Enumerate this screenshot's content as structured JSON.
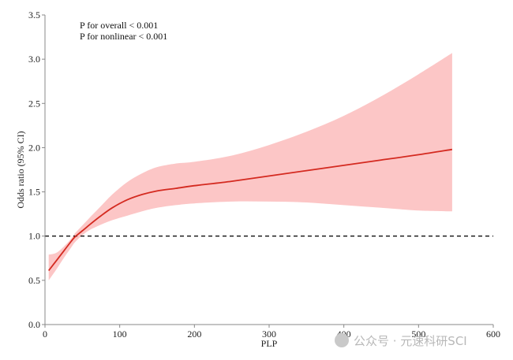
{
  "chart_data": {
    "type": "line",
    "xlabel": "PLP",
    "ylabel": "Odds ratio (95% CI)",
    "xlim": [
      0,
      600
    ],
    "ylim": [
      0,
      3.5
    ],
    "x_ticks": [
      "0",
      "100",
      "200",
      "300",
      "400",
      "500",
      "600"
    ],
    "y_ticks": [
      "0.0",
      "0.5",
      "1.0",
      "1.5",
      "2.0",
      "2.5",
      "3.0",
      "3.5"
    ],
    "annotations": [
      "P for overall < 0.001",
      "P for nonlinear < 0.001"
    ],
    "reference_line": {
      "y": 1.0,
      "style": "dashed",
      "color": "#111111"
    },
    "series": [
      {
        "x": [
          5,
          15,
          25,
          35,
          40,
          50,
          60,
          75,
          90,
          110,
          130,
          150,
          175,
          200,
          250,
          300,
          350,
          400,
          450,
          500,
          545
        ],
        "y": [
          0.61,
          0.72,
          0.83,
          0.94,
          0.99,
          1.06,
          1.13,
          1.23,
          1.32,
          1.41,
          1.47,
          1.51,
          1.54,
          1.57,
          1.62,
          1.68,
          1.74,
          1.8,
          1.86,
          1.92,
          1.98
        ],
        "lower": [
          0.5,
          0.62,
          0.75,
          0.87,
          0.93,
          1.01,
          1.07,
          1.13,
          1.18,
          1.23,
          1.28,
          1.32,
          1.35,
          1.37,
          1.39,
          1.39,
          1.38,
          1.35,
          1.32,
          1.29,
          1.28
        ],
        "upper": [
          0.79,
          0.81,
          0.88,
          0.97,
          1.03,
          1.12,
          1.21,
          1.34,
          1.47,
          1.61,
          1.71,
          1.78,
          1.82,
          1.84,
          1.91,
          2.03,
          2.18,
          2.36,
          2.58,
          2.83,
          3.07
        ]
      }
    ],
    "colors": {
      "line": "#d42a20",
      "ci_band": "#fcc6c6",
      "axis": "#888888"
    }
  },
  "watermark": "公众号 · 元速科研SCI"
}
